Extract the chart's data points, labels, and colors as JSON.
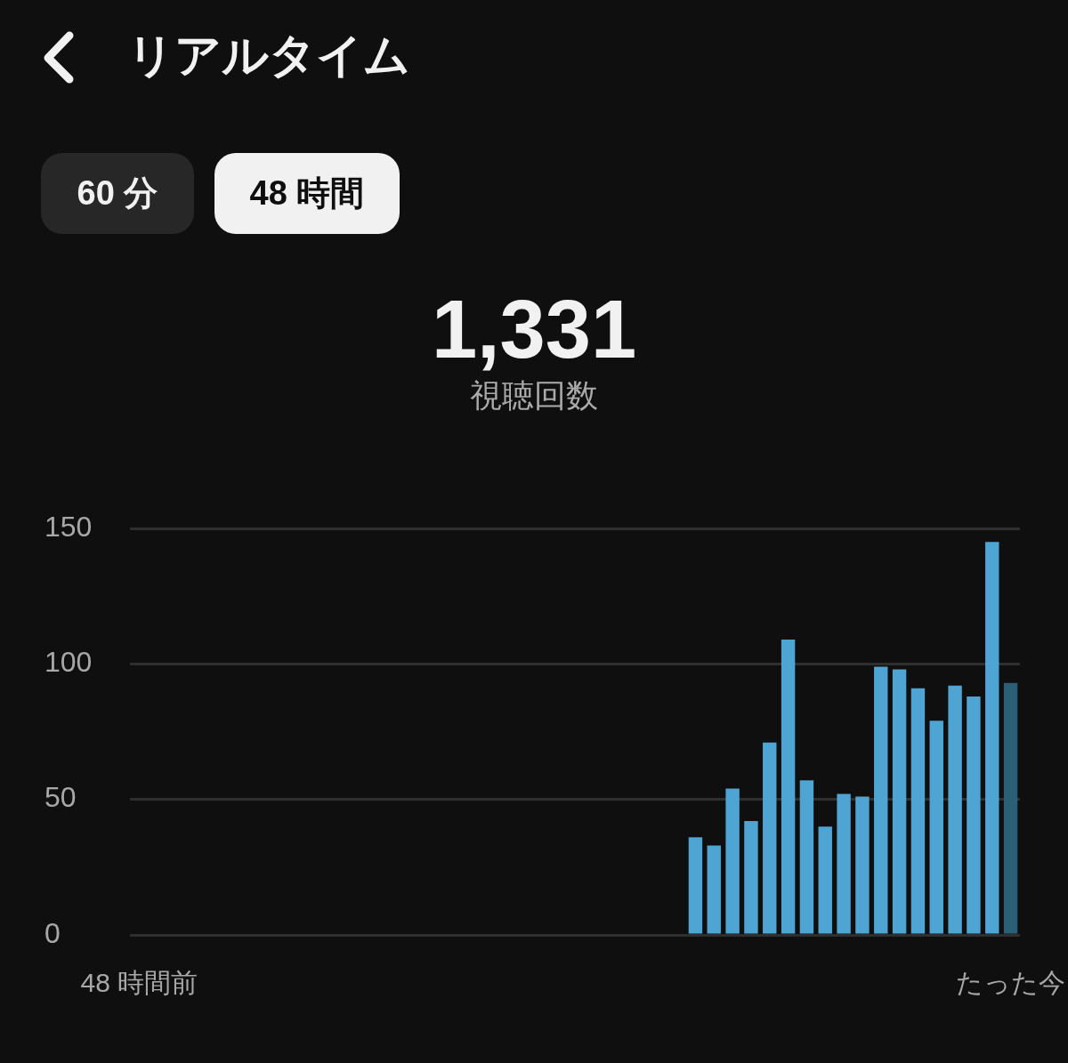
{
  "chart_data": {
    "type": "bar",
    "title": "リアルタイム",
    "annotations": [
      "60 分",
      "48 時間",
      "1,331",
      "視聴回数"
    ],
    "categories": [
      "48 時間前",
      null,
      null,
      null,
      null,
      null,
      null,
      null,
      null,
      null,
      null,
      null,
      null,
      null,
      null,
      null,
      null,
      null,
      null,
      null,
      null,
      null,
      null,
      null,
      null,
      null,
      null,
      null,
      null,
      null,
      null,
      null,
      null,
      null,
      null,
      null,
      null,
      null,
      null,
      null,
      null,
      null,
      null,
      null,
      null,
      null,
      null,
      "たった今"
    ],
    "values": [
      null,
      null,
      null,
      null,
      null,
      null,
      null,
      null,
      null,
      null,
      null,
      null,
      null,
      null,
      null,
      null,
      null,
      null,
      null,
      null,
      null,
      null,
      null,
      null,
      null,
      null,
      null,
      null,
      null,
      null,
      36,
      33,
      54,
      42,
      71,
      109,
      57,
      40,
      52,
      51,
      99,
      98,
      91,
      79,
      92,
      88,
      145,
      93
    ],
    "colors": [
      "#4ea5d3",
      "#4ea5d3",
      "#4ea5d3",
      "#4ea5d3",
      "#4ea5d3",
      "#4ea5d3",
      "#4ea5d3",
      "#4ea5d3",
      "#4ea5d3",
      "#4ea5d3",
      "#4ea5d3",
      "#4ea5d3",
      "#4ea5d3",
      "#4ea5d3",
      "#4ea5d3",
      "#4ea5d3",
      "#4ea5d3",
      "#4ea5d3",
      "#4ea5d3",
      "#4ea5d3",
      "#4ea5d3",
      "#4ea5d3",
      "#4ea5d3",
      "#4ea5d3",
      "#4ea5d3",
      "#4ea5d3",
      "#4ea5d3",
      "#4ea5d3",
      "#4ea5d3",
      "#4ea5d3",
      "#4ea5d3",
      "#4ea5d3",
      "#4ea5d3",
      "#4ea5d3",
      "#4ea5d3",
      "#4ea5d3",
      "#4ea5d3",
      "#4ea5d3",
      "#4ea5d3",
      "#4ea5d3",
      "#4ea5d3",
      "#4ea5d3",
      "#4ea5d3",
      "#4ea5d3",
      "#4ea5d3",
      "#4ea5d3",
      "#4ea5d3",
      "#2b5f78"
    ],
    "ylim": [
      0,
      150
    ],
    "yticks": [
      0,
      50,
      100,
      150
    ],
    "grid": "y"
  }
}
